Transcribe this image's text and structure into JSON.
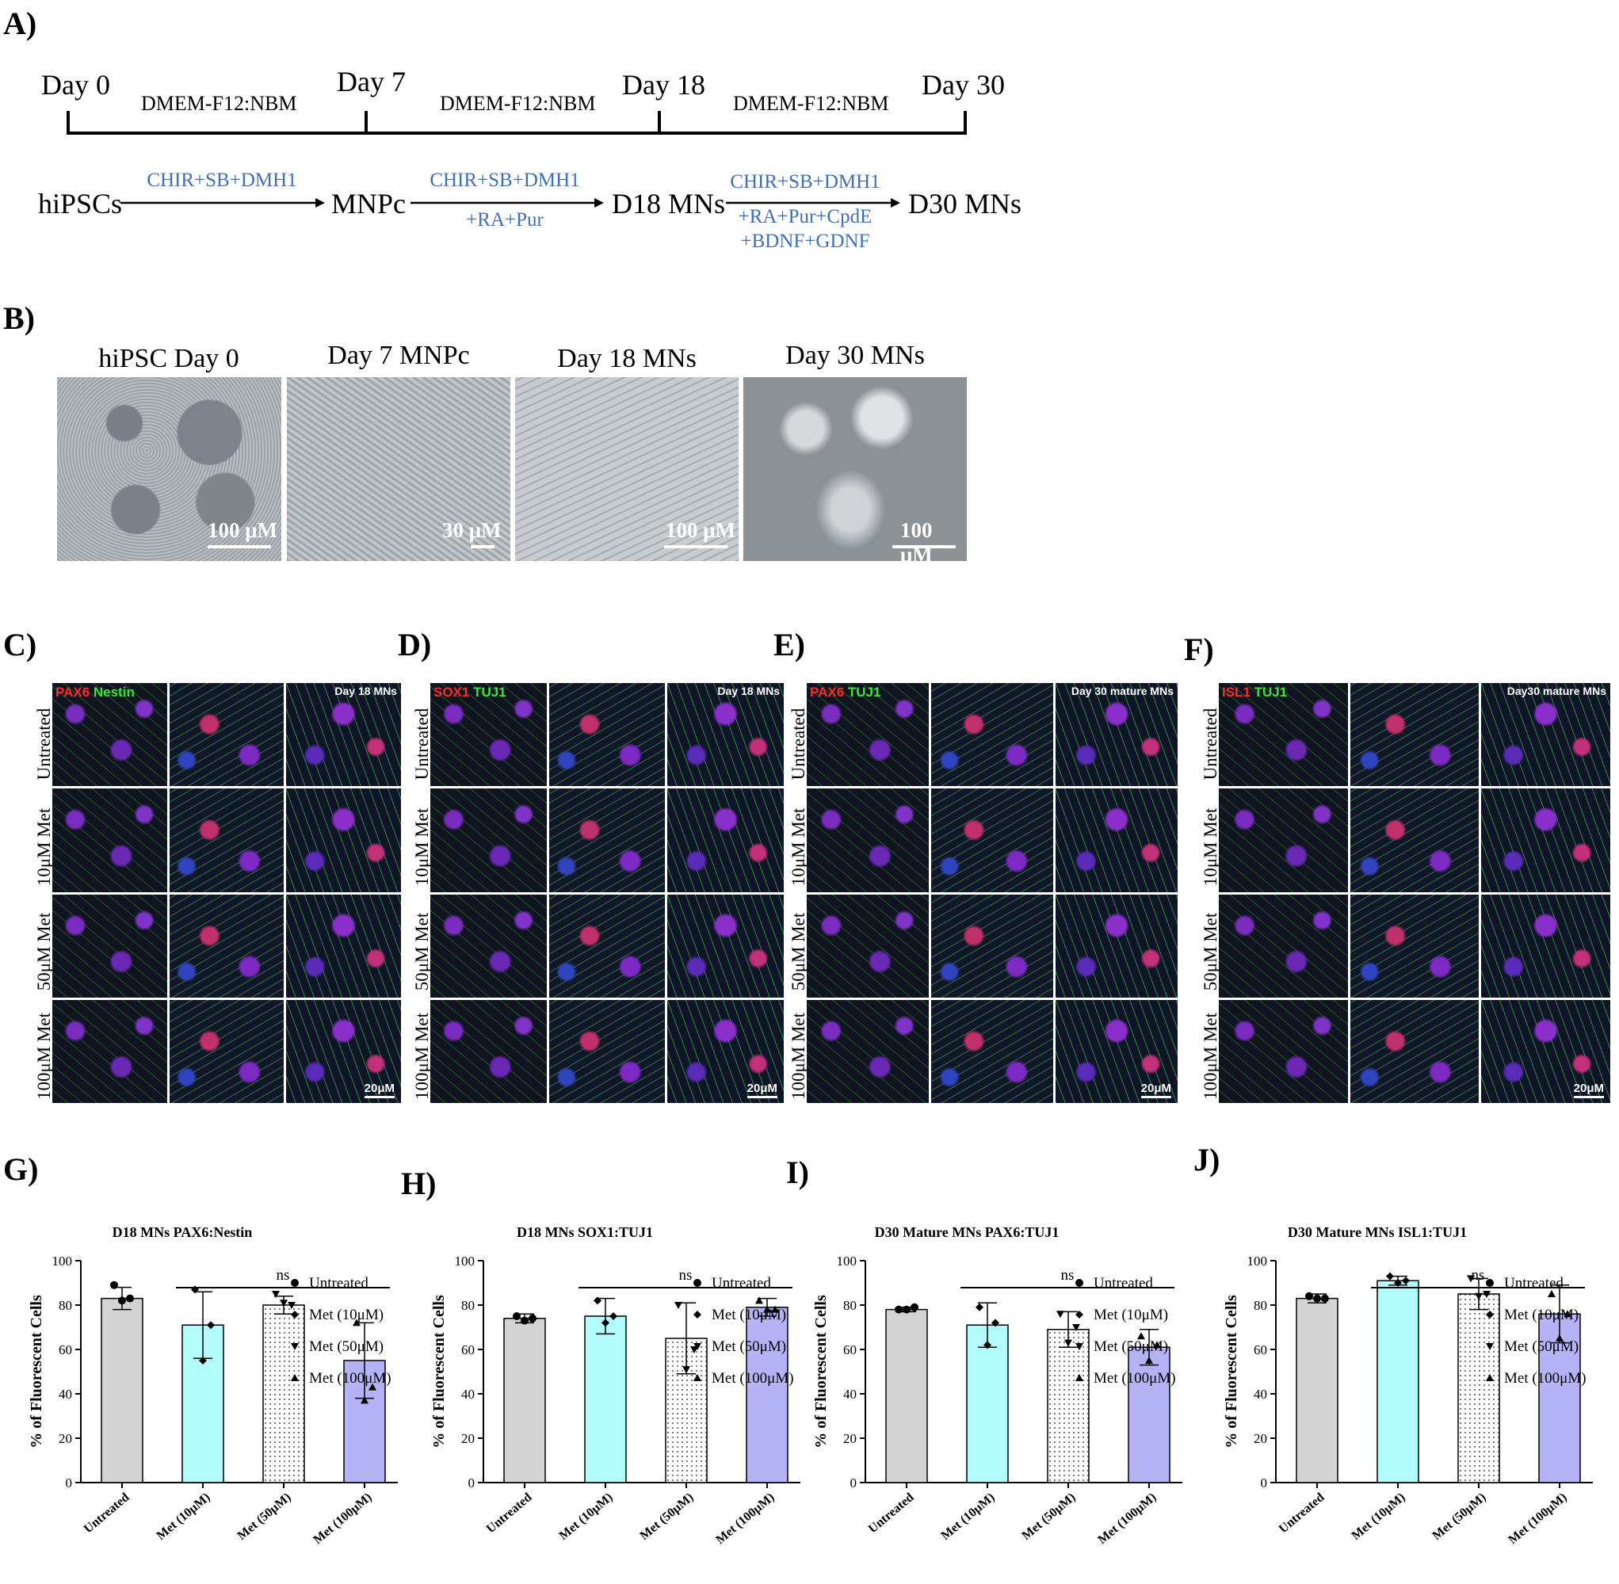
{
  "panels": {
    "A": "A)",
    "B": "B)",
    "C": "C)",
    "D": "D)",
    "E": "E)",
    "F": "F)",
    "G": "G)",
    "H": "H)",
    "I": "I)",
    "J": "J)"
  },
  "timeline": {
    "days": [
      "Day 0",
      "Day 7",
      "Day 18",
      "Day 30"
    ],
    "media": [
      "DMEM-F12:NBM",
      "DMEM-F12:NBM",
      "DMEM-F12:NBM"
    ],
    "stages": [
      "hiPSCs",
      "MNPc",
      "D18 MNs",
      "D30 MNs"
    ],
    "step1": "CHIR+SB+DMH1",
    "step2_top": "CHIR+SB+DMH1",
    "step2_bottom": "+RA+Pur",
    "step3_top": "CHIR+SB+DMH1",
    "step3_mid": "+RA+Pur+CpdE",
    "step3_bottom": "+BDNF+GDNF"
  },
  "brightfield": [
    {
      "title": "hiPSC Day 0",
      "scale": "100 μM"
    },
    {
      "title": "Day 7 MNPc",
      "scale": "30 μM"
    },
    {
      "title": "Day 18 MNs",
      "scale": "100 μM"
    },
    {
      "title": "Day 30 MNs",
      "scale": "100 μM"
    }
  ],
  "immuno": {
    "row_labels": [
      "Untreated",
      "10μM Met",
      "50μM Met",
      "100μM Met"
    ],
    "scale": "20μM",
    "colors": {
      "red": "#ff2a2a",
      "green": "#39e639"
    },
    "C": {
      "m1": "PAX6",
      "m2": "Nestin",
      "stage": "Day 18 MNs"
    },
    "D": {
      "m1": "SOX1",
      "m2": "TUJ1",
      "stage": "Day 18 MNs"
    },
    "E": {
      "m1": "PAX6",
      "m2": "TUJ1",
      "stage": "Day 30 mature MNs"
    },
    "F": {
      "m1": "ISL1",
      "m2": "TUJ1",
      "stage": "Day30 mature MNs"
    }
  },
  "chart_data": [
    {
      "type": "bar",
      "panel": "G",
      "title": "D18 MNs PAX6:Nestin",
      "ylabel": "% of Fluorescent Cells",
      "ylim": [
        0,
        100
      ],
      "yticks": [
        "0",
        "20",
        "40",
        "60",
        "80",
        "100"
      ],
      "categories": [
        "Untreated",
        "Met (10μM)",
        "Met (50μM)",
        "Met (100μM)"
      ],
      "values": [
        83,
        71,
        80,
        55
      ],
      "sd": [
        5,
        15,
        4,
        17
      ],
      "points": [
        [
          89,
          83,
          82
        ],
        [
          87,
          71,
          55
        ],
        [
          85,
          80,
          81
        ],
        [
          72,
          43,
          37
        ]
      ],
      "annotation": "ns",
      "legend": [
        "Untreated",
        "Met (10μM)",
        "Met (50μM)",
        "Met (100μM)"
      ]
    },
    {
      "type": "bar",
      "panel": "H",
      "title": "D18 MNs SOX1:TUJ1",
      "ylabel": "% of Fluorescent Cells",
      "ylim": [
        0,
        100
      ],
      "yticks": [
        "0",
        "20",
        "40",
        "60",
        "80",
        "100"
      ],
      "categories": [
        "Untreated",
        "Met (10μM)",
        "Met (50μM)",
        "Met (100μM)"
      ],
      "values": [
        74,
        75,
        65,
        79
      ],
      "sd": [
        2,
        8,
        16,
        4
      ],
      "points": [
        [
          75,
          74,
          73
        ],
        [
          82,
          75,
          72
        ],
        [
          80,
          60,
          51
        ],
        [
          82,
          78,
          78
        ]
      ],
      "annotation": "ns",
      "legend": [
        "Untreated",
        "Met (10μM)",
        "Met (50μM)",
        "Met (100μM)"
      ]
    },
    {
      "type": "bar",
      "panel": "I",
      "title": "D30 Mature MNs PAX6:TUJ1",
      "ylabel": "% of Fluorescent Cells",
      "ylim": [
        0,
        100
      ],
      "yticks": [
        "0",
        "20",
        "40",
        "60",
        "80",
        "100"
      ],
      "categories": [
        "Untreated",
        "Met (10μM)",
        "Met (50μM)",
        "Met (100μM)"
      ],
      "values": [
        78,
        71,
        69,
        61
      ],
      "sd": [
        1,
        10,
        8,
        8
      ],
      "points": [
        [
          78,
          79,
          78
        ],
        [
          79,
          72,
          62
        ],
        [
          76,
          70,
          63
        ],
        [
          66,
          62,
          55
        ]
      ],
      "annotation": "ns",
      "legend": [
        "Untreated",
        "Met (10μM)",
        "Met (50μM)",
        "Met (100μM)"
      ]
    },
    {
      "type": "bar",
      "panel": "J",
      "title": "D30 Mature MNs ISL1:TUJ1",
      "ylabel": "% of Fluorescent Cells",
      "ylim": [
        0,
        100
      ],
      "yticks": [
        "0",
        "20",
        "40",
        "60",
        "80",
        "100"
      ],
      "categories": [
        "Untreated",
        "Met (10μM)",
        "Met (50μM)",
        "Met (100μM)"
      ],
      "values": [
        83,
        91,
        85,
        76
      ],
      "sd": [
        2,
        2,
        7,
        13
      ],
      "points": [
        [
          84,
          83,
          83
        ],
        [
          93,
          91,
          90
        ],
        [
          92,
          85,
          84
        ],
        [
          85,
          76,
          65
        ]
      ],
      "annotation": "ns",
      "legend": [
        "Untreated",
        "Met (10μM)",
        "Met (50μM)",
        "Met (100μM)"
      ]
    }
  ]
}
